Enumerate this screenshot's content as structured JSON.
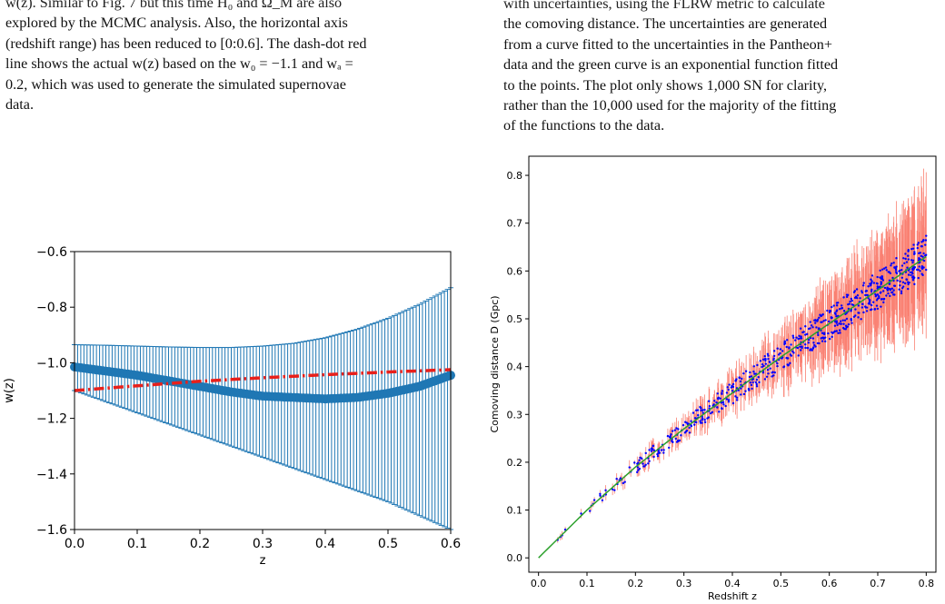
{
  "left_caption": {
    "lines": [
      "w(z). Similar to Fig. 7 but this time H₀ and Ω_M are also",
      "explored by the MCMC analysis. Also, the horizontal axis",
      "(redshift range) has been reduced to [0:0.6]. The dash-dot red",
      "line shows the actual w(z) based on the w₀ = −1.1 and wₐ =",
      "0.2, which was used to generate the simulated supernovae",
      "data."
    ]
  },
  "right_caption": {
    "lines": [
      "with uncertainties, using the FLRW metric to calculate",
      "the comoving distance. The uncertainties are generated",
      "from a curve fitted to the uncertainties in the Pantheon+",
      "data and the green curve is an exponential function fitted",
      "to the points. The plot only shows 1,000 SN for clarity,",
      "rather than the 10,000 used for the majority of the fitting",
      "of the functions to the data."
    ]
  },
  "chart_data": [
    {
      "type": "line",
      "xlabel": "z",
      "ylabel": "w(z)",
      "xlim": [
        0.0,
        0.6
      ],
      "ylim": [
        -1.6,
        -0.6
      ],
      "xticks": [
        "0.0",
        "0.1",
        "0.2",
        "0.3",
        "0.4",
        "0.5",
        "0.6"
      ],
      "yticks": [
        "−1.6",
        "−1.4",
        "−1.2",
        "−1.0",
        "−0.8",
        "−0.6"
      ],
      "grid": false,
      "series": [
        {
          "style": "points with error bars",
          "color": "#1f77b4",
          "x": [
            0.0,
            0.05,
            0.1,
            0.15,
            0.2,
            0.25,
            0.3,
            0.35,
            0.4,
            0.45,
            0.5,
            0.55,
            0.6
          ],
          "y": [
            -1.015,
            -1.03,
            -1.045,
            -1.065,
            -1.085,
            -1.105,
            -1.12,
            -1.125,
            -1.13,
            -1.125,
            -1.11,
            -1.085,
            -1.045
          ],
          "y_lower": [
            -1.1,
            -1.14,
            -1.18,
            -1.22,
            -1.26,
            -1.3,
            -1.34,
            -1.38,
            -1.42,
            -1.46,
            -1.5,
            -1.55,
            -1.6
          ],
          "y_upper": [
            -0.935,
            -0.937,
            -0.94,
            -0.943,
            -0.945,
            -0.945,
            -0.94,
            -0.93,
            -0.91,
            -0.88,
            -0.84,
            -0.79,
            -0.73
          ]
        },
        {
          "style": "dash-dot line",
          "color": "#e8201b",
          "x": [
            0.0,
            0.1,
            0.2,
            0.3,
            0.4,
            0.5,
            0.6
          ],
          "y": [
            -1.1,
            -1.0829,
            -1.0667,
            -1.0538,
            -1.0429,
            -1.0333,
            -1.025
          ]
        }
      ]
    },
    {
      "type": "scatter",
      "xlabel": "Redshift z",
      "ylabel": "Comoving distance D (Gpc)",
      "xlim": [
        -0.02,
        0.82
      ],
      "ylim": [
        -0.03,
        0.84
      ],
      "xticks": [
        "0.0",
        "0.1",
        "0.2",
        "0.3",
        "0.4",
        "0.5",
        "0.6",
        "0.7",
        "0.8"
      ],
      "yticks": [
        "0.0",
        "0.1",
        "0.2",
        "0.3",
        "0.4",
        "0.5",
        "0.6",
        "0.7",
        "0.8"
      ],
      "grid": false,
      "fit_curve": {
        "color": "#2ca02c",
        "x": [
          0.0,
          0.1,
          0.2,
          0.3,
          0.4,
          0.5,
          0.6,
          0.7,
          0.8
        ],
        "y": [
          0.0,
          0.1,
          0.19,
          0.27,
          0.345,
          0.42,
          0.49,
          0.56,
          0.63
        ]
      },
      "point_color": "#0000ff",
      "errorbar_color": "#fa8072"
    }
  ]
}
